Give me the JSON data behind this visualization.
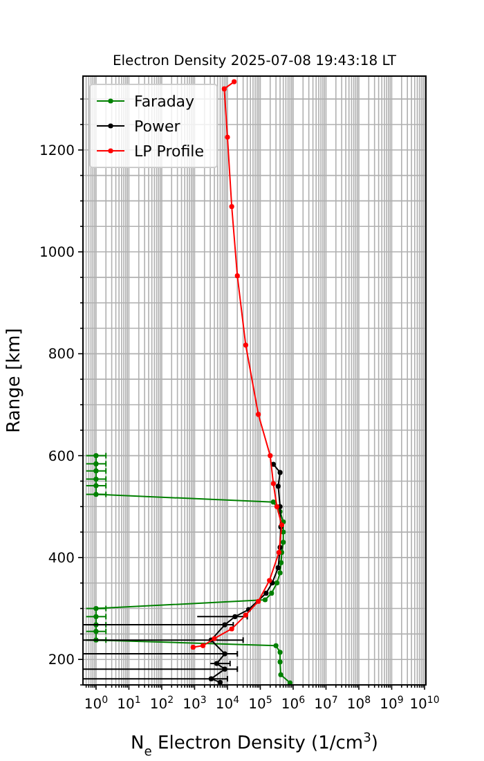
{
  "chart_data": {
    "type": "line",
    "title": "Electron Density 2025-07-08 19:43:18 LT",
    "xlabel": "N$_{e}$ Electron Density (1/cm$^{3}$)",
    "ylabel": "Range [km]",
    "log": "x",
    "grid": true,
    "legend": "top left",
    "marker": "circle",
    "line_style": "solid",
    "xlim": [
      0.4,
      11000000000
    ],
    "ylim": [
      150,
      1345
    ],
    "xticks": [
      {
        "value": 0.5,
        "label": null
      },
      {
        "value": 0.6,
        "label": null
      },
      {
        "value": 0.7,
        "label": null
      },
      {
        "value": 0.8,
        "label": null
      },
      {
        "value": 0.9,
        "label": null
      },
      {
        "value": 1,
        "label": "10$^{0}$"
      },
      {
        "value": 2,
        "label": null
      },
      {
        "value": 3,
        "label": null
      },
      {
        "value": 4,
        "label": null
      },
      {
        "value": 5,
        "label": null
      },
      {
        "value": 6,
        "label": null
      },
      {
        "value": 7,
        "label": null
      },
      {
        "value": 8,
        "label": null
      },
      {
        "value": 9,
        "label": null
      },
      {
        "value": 10,
        "label": "10$^{1}$"
      },
      {
        "value": 20,
        "label": null
      },
      {
        "value": 30,
        "label": null
      },
      {
        "value": 40,
        "label": null
      },
      {
        "value": 50,
        "label": null
      },
      {
        "value": 60,
        "label": null
      },
      {
        "value": 70,
        "label": null
      },
      {
        "value": 80,
        "label": null
      },
      {
        "value": 90,
        "label": null
      },
      {
        "value": 100,
        "label": "10$^{2}$"
      },
      {
        "value": 200,
        "label": null
      },
      {
        "value": 300,
        "label": null
      },
      {
        "value": 400,
        "label": null
      },
      {
        "value": 500,
        "label": null
      },
      {
        "value": 600,
        "label": null
      },
      {
        "value": 700,
        "label": null
      },
      {
        "value": 800,
        "label": null
      },
      {
        "value": 900,
        "label": null
      },
      {
        "value": 1000,
        "label": "10$^{3}$"
      },
      {
        "value": 2000,
        "label": null
      },
      {
        "value": 3000,
        "label": null
      },
      {
        "value": 4000,
        "label": null
      },
      {
        "value": 5000,
        "label": null
      },
      {
        "value": 6000,
        "label": null
      },
      {
        "value": 7000,
        "label": null
      },
      {
        "value": 8000,
        "label": null
      },
      {
        "value": 9000,
        "label": null
      },
      {
        "value": 10000,
        "label": "10$^{4}$"
      },
      {
        "value": 20000,
        "label": null
      },
      {
        "value": 30000,
        "label": null
      },
      {
        "value": 40000,
        "label": null
      },
      {
        "value": 50000,
        "label": null
      },
      {
        "value": 60000,
        "label": null
      },
      {
        "value": 70000,
        "label": null
      },
      {
        "value": 80000,
        "label": null
      },
      {
        "value": 90000,
        "label": null
      },
      {
        "value": 100000,
        "label": "10$^{5}$"
      },
      {
        "value": 200000,
        "label": null
      },
      {
        "value": 300000,
        "label": null
      },
      {
        "value": 400000,
        "label": null
      },
      {
        "value": 500000,
        "label": null
      },
      {
        "value": 600000,
        "label": null
      },
      {
        "value": 700000,
        "label": null
      },
      {
        "value": 800000,
        "label": null
      },
      {
        "value": 900000,
        "label": null
      },
      {
        "value": 1000000,
        "label": "10$^{6}$"
      },
      {
        "value": 2000000,
        "label": null
      },
      {
        "value": 3000000,
        "label": null
      },
      {
        "value": 4000000,
        "label": null
      },
      {
        "value": 5000000,
        "label": null
      },
      {
        "value": 6000000,
        "label": null
      },
      {
        "value": 7000000,
        "label": null
      },
      {
        "value": 8000000,
        "label": null
      },
      {
        "value": 9000000,
        "label": null
      },
      {
        "value": 10000000,
        "label": "10$^{7}$"
      },
      {
        "value": 20000000,
        "label": null
      },
      {
        "value": 30000000,
        "label": null
      },
      {
        "value": 40000000,
        "label": null
      },
      {
        "value": 50000000,
        "label": null
      },
      {
        "value": 60000000,
        "label": null
      },
      {
        "value": 70000000,
        "label": null
      },
      {
        "value": 80000000,
        "label": null
      },
      {
        "value": 90000000,
        "label": null
      },
      {
        "value": 100000000,
        "label": "10$^{8}$"
      },
      {
        "value": 200000000,
        "label": null
      },
      {
        "value": 300000000,
        "label": null
      },
      {
        "value": 400000000,
        "label": null
      },
      {
        "value": 500000000,
        "label": null
      },
      {
        "value": 600000000,
        "label": null
      },
      {
        "value": 700000000,
        "label": null
      },
      {
        "value": 800000000,
        "label": null
      },
      {
        "value": 900000000,
        "label": null
      },
      {
        "value": 1000000000,
        "label": "10$^{9}$"
      },
      {
        "value": 2000000000,
        "label": null
      },
      {
        "value": 3000000000,
        "label": null
      },
      {
        "value": 4000000000,
        "label": null
      },
      {
        "value": 5000000000,
        "label": null
      },
      {
        "value": 6000000000,
        "label": null
      },
      {
        "value": 7000000000,
        "label": null
      },
      {
        "value": 8000000000,
        "label": null
      },
      {
        "value": 9000000000,
        "label": null
      },
      {
        "value": 10000000000,
        "label": "10$^{10}$"
      }
    ],
    "yticks": [
      {
        "value": 150,
        "label": null
      },
      200,
      {
        "value": 250,
        "label": null
      },
      {
        "value": 300,
        "label": null
      },
      {
        "value": 350,
        "label": null
      },
      400,
      {
        "value": 450,
        "label": null
      },
      {
        "value": 500,
        "label": null
      },
      {
        "value": 550,
        "label": null
      },
      600,
      {
        "value": 650,
        "label": null
      },
      {
        "value": 700,
        "label": null
      },
      {
        "value": 750,
        "label": null
      },
      800,
      {
        "value": 850,
        "label": null
      },
      {
        "value": 900,
        "label": null
      },
      {
        "value": 950,
        "label": null
      },
      1000,
      {
        "value": 1050,
        "label": null
      },
      {
        "value": 1100,
        "label": null
      },
      {
        "value": 1150,
        "label": null
      },
      1200,
      {
        "value": 1250,
        "label": null
      },
      {
        "value": 1300,
        "label": null
      }
    ],
    "series": [
      {
        "name": "Faraday",
        "color": "#008000",
        "x": [
          1,
          1,
          1,
          1,
          1,
          1,
          250000,
          400000,
          500000,
          500000,
          500000,
          450000,
          430000,
          400000,
          320000,
          220000,
          140000,
          1,
          1,
          1,
          1,
          1,
          300000,
          400000,
          400000,
          420000,
          800000
        ],
        "values": [
          600,
          584,
          570,
          554,
          541,
          524,
          509,
          490,
          470,
          450,
          430,
          410,
          390,
          370,
          350,
          330,
          317,
          300,
          284,
          268,
          255,
          238,
          227,
          214,
          195,
          170,
          154
        ],
        "xerrors": [
          [
            0.5,
            2
          ],
          [
            0.5,
            2
          ],
          [
            0.5,
            2
          ],
          [
            0.5,
            2
          ],
          [
            0.5,
            2
          ],
          [
            0.5,
            2
          ],
          null,
          null,
          null,
          null,
          null,
          null,
          null,
          null,
          null,
          null,
          null,
          [
            0.5,
            2
          ],
          [
            0.5,
            2
          ],
          [
            0.5,
            2
          ],
          [
            0.5,
            2
          ],
          [
            0.5,
            2
          ],
          null,
          null,
          null,
          null,
          null
        ]
      },
      {
        "name": "Power",
        "color": "#000000",
        "x": [
          250000,
          400000,
          350000,
          400000,
          420000,
          400000,
          350000,
          230000,
          150000,
          44000,
          17000,
          8300,
          3200,
          8300,
          4700,
          8300,
          3200,
          6000
        ],
        "values": [
          583,
          567,
          540,
          500,
          460,
          420,
          380,
          350,
          330,
          298,
          284,
          268,
          238,
          211,
          192,
          181,
          162,
          155
        ],
        "xerrors": [
          null,
          null,
          null,
          null,
          null,
          null,
          null,
          null,
          null,
          null,
          [
            1200,
            40000
          ],
          [
            0.4,
            15000
          ],
          [
            0.4,
            30000
          ],
          [
            0.4,
            20000
          ],
          [
            3000,
            12000
          ],
          [
            0.4,
            20000
          ],
          [
            0.4,
            10000
          ],
          null
        ]
      },
      {
        "name": "LP Profile",
        "color": "#ff0000",
        "x": [
          16000,
          8000,
          10000,
          13500,
          20000,
          36000,
          87000,
          200000,
          250000,
          320000,
          450000,
          370000,
          190000,
          87000,
          36000,
          13500,
          4000,
          1800,
          900
        ],
        "values": [
          1334,
          1320,
          1225,
          1089,
          953,
          817,
          681,
          600,
          545,
          500,
          464,
          410,
          355,
          314,
          287,
          260,
          241,
          227,
          224
        ]
      }
    ]
  }
}
